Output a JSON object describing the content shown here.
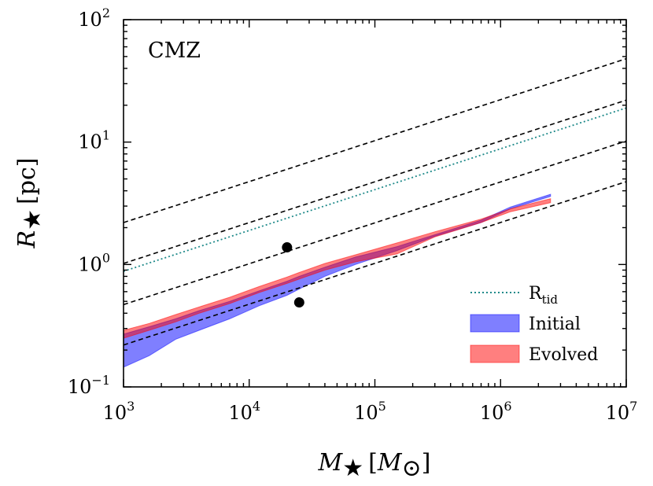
{
  "chart_data": {
    "type": "area",
    "annotation": "CMZ",
    "xlabel": {
      "symbol": "M",
      "sub": "★",
      "unit_open": "[",
      "unit_symbol": "M",
      "unit_sub": "⊙",
      "unit_close": "]"
    },
    "ylabel": {
      "symbol": "R",
      "sub": "★",
      "unit": "[pc]"
    },
    "xscale": "log",
    "yscale": "log",
    "xlim": [
      1000,
      10000000
    ],
    "ylim": [
      0.1,
      100
    ],
    "x_ticks": [
      {
        "value": 1000,
        "base": "10",
        "exp": "3"
      },
      {
        "value": 10000,
        "base": "10",
        "exp": "4"
      },
      {
        "value": 100000,
        "base": "10",
        "exp": "5"
      },
      {
        "value": 1000000,
        "base": "10",
        "exp": "6"
      },
      {
        "value": 10000000,
        "base": "10",
        "exp": "7"
      }
    ],
    "y_ticks": [
      {
        "value": 0.1,
        "base": "10",
        "exp": "−1"
      },
      {
        "value": 1,
        "base": "10",
        "exp": "0"
      },
      {
        "value": 10,
        "base": "10",
        "exp": "1"
      },
      {
        "value": 100,
        "base": "10",
        "exp": "2"
      }
    ],
    "dashed_lines": [
      {
        "name": "dashed-line-1",
        "x": [
          1000,
          10000000
        ],
        "y": [
          2.2,
          48
        ]
      },
      {
        "name": "dashed-line-2",
        "x": [
          1000,
          10000000
        ],
        "y": [
          1.02,
          22
        ]
      },
      {
        "name": "dashed-line-3",
        "x": [
          1000,
          10000000
        ],
        "y": [
          0.47,
          10.2
        ]
      },
      {
        "name": "dashed-line-4",
        "x": [
          1000,
          10000000
        ],
        "y": [
          0.22,
          4.75
        ]
      }
    ],
    "r_tid": {
      "name": "R_tid",
      "label_base": "R",
      "label_sub": "tid",
      "color": "#1f8a8a",
      "x": [
        1000,
        10000000
      ],
      "y": [
        0.88,
        19.0
      ]
    },
    "series": [
      {
        "name": "Initial",
        "color": "#0000ff",
        "x": [
          1000,
          1600,
          2600,
          4000,
          7000,
          12000,
          20000,
          25000,
          40000,
          70000,
          150000,
          300000,
          700000,
          1200000,
          2500000
        ],
        "lower": [
          0.145,
          0.18,
          0.245,
          0.29,
          0.36,
          0.46,
          0.56,
          0.63,
          0.8,
          1.0,
          1.3,
          1.7,
          2.2,
          2.85,
          3.6
        ],
        "upper": [
          0.27,
          0.31,
          0.36,
          0.42,
          0.5,
          0.61,
          0.73,
          0.8,
          0.95,
          1.15,
          1.4,
          1.75,
          2.3,
          2.95,
          3.75
        ]
      },
      {
        "name": "Evolved",
        "color": "#ff0000",
        "x": [
          1000,
          1600,
          2600,
          4000,
          7000,
          12000,
          20000,
          25000,
          40000,
          70000,
          150000,
          300000,
          700000,
          1200000,
          2500000
        ],
        "lower": [
          0.25,
          0.29,
          0.34,
          0.4,
          0.48,
          0.59,
          0.7,
          0.76,
          0.9,
          1.05,
          1.22,
          1.68,
          2.2,
          2.7,
          3.2
        ],
        "upper": [
          0.29,
          0.33,
          0.39,
          0.45,
          0.54,
          0.66,
          0.79,
          0.86,
          1.02,
          1.2,
          1.5,
          1.85,
          2.35,
          2.85,
          3.45
        ]
      }
    ],
    "points": [
      {
        "name": "point-1",
        "x": 20000,
        "y": 1.38
      },
      {
        "name": "point-2",
        "x": 25000,
        "y": 0.49
      }
    ],
    "legend": {
      "placement": "bottom-right",
      "entries": [
        {
          "label_base": "R",
          "label_sub": "tid",
          "style": "dotted"
        },
        {
          "label": "Initial",
          "style": "patch"
        },
        {
          "label": "Evolved",
          "style": "patch"
        }
      ]
    }
  }
}
